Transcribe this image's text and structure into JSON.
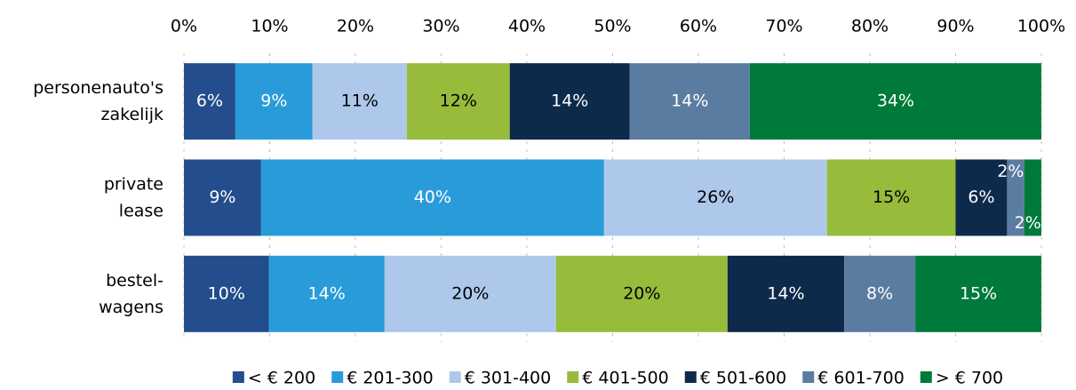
{
  "chart_data": {
    "type": "stacked-bar-horizontal",
    "categories": [
      "personenauto's\nzakelijk",
      "private\nlease",
      "bestel-\nwagens"
    ],
    "xlim": [
      0,
      100
    ],
    "xticks": [
      {
        "value": 0,
        "label": "0%"
      },
      {
        "value": 10,
        "label": "10%"
      },
      {
        "value": 20,
        "label": "20%"
      },
      {
        "value": 30,
        "label": "30%"
      },
      {
        "value": 40,
        "label": "40%"
      },
      {
        "value": 50,
        "label": "50%"
      },
      {
        "value": 60,
        "label": "60%"
      },
      {
        "value": 70,
        "label": "70%"
      },
      {
        "value": 80,
        "label": "80%"
      },
      {
        "value": 90,
        "label": "90%"
      },
      {
        "value": 100,
        "label": "100%"
      }
    ],
    "grid": true,
    "legend": "bottom",
    "series": [
      {
        "name": "< € 200",
        "color": "#234d8c",
        "label_color": "#ffffff",
        "values": [
          6,
          9,
          9.9
        ],
        "value_labels": [
          "6%",
          "9%",
          "10%"
        ]
      },
      {
        "name": "€ 201-300",
        "color": "#2a9bd9",
        "label_color": "#ffffff",
        "values": [
          9,
          40,
          13.5
        ],
        "value_labels": [
          "9%",
          "40%",
          "14%"
        ]
      },
      {
        "name": "€ 301-400",
        "color": "#aec8eb",
        "label_color": "#000000",
        "values": [
          11,
          26,
          20
        ],
        "value_labels": [
          "11%",
          "26%",
          "20%"
        ]
      },
      {
        "name": "€ 401-500",
        "color": "#97bb3b",
        "label_color": "#000000",
        "values": [
          12,
          15,
          20
        ],
        "value_labels": [
          "12%",
          "15%",
          "20%"
        ]
      },
      {
        "name": "€ 501-600",
        "color": "#0e2a4b",
        "label_color": "#ffffff",
        "values": [
          14,
          6,
          13.6
        ],
        "value_labels": [
          "14%",
          "6%",
          "14%"
        ]
      },
      {
        "name": "€ 601-700",
        "color": "#5b7ca1",
        "label_color": "#ffffff",
        "values": [
          14,
          2,
          8.3
        ],
        "value_labels": [
          "14%",
          "2%",
          "8%"
        ]
      },
      {
        "name": "> € 700",
        "color": "#007a3a",
        "label_color": "#ffffff",
        "values": [
          34,
          2,
          14.7
        ],
        "value_labels": [
          "34%",
          "2%",
          "15%"
        ]
      }
    ]
  }
}
